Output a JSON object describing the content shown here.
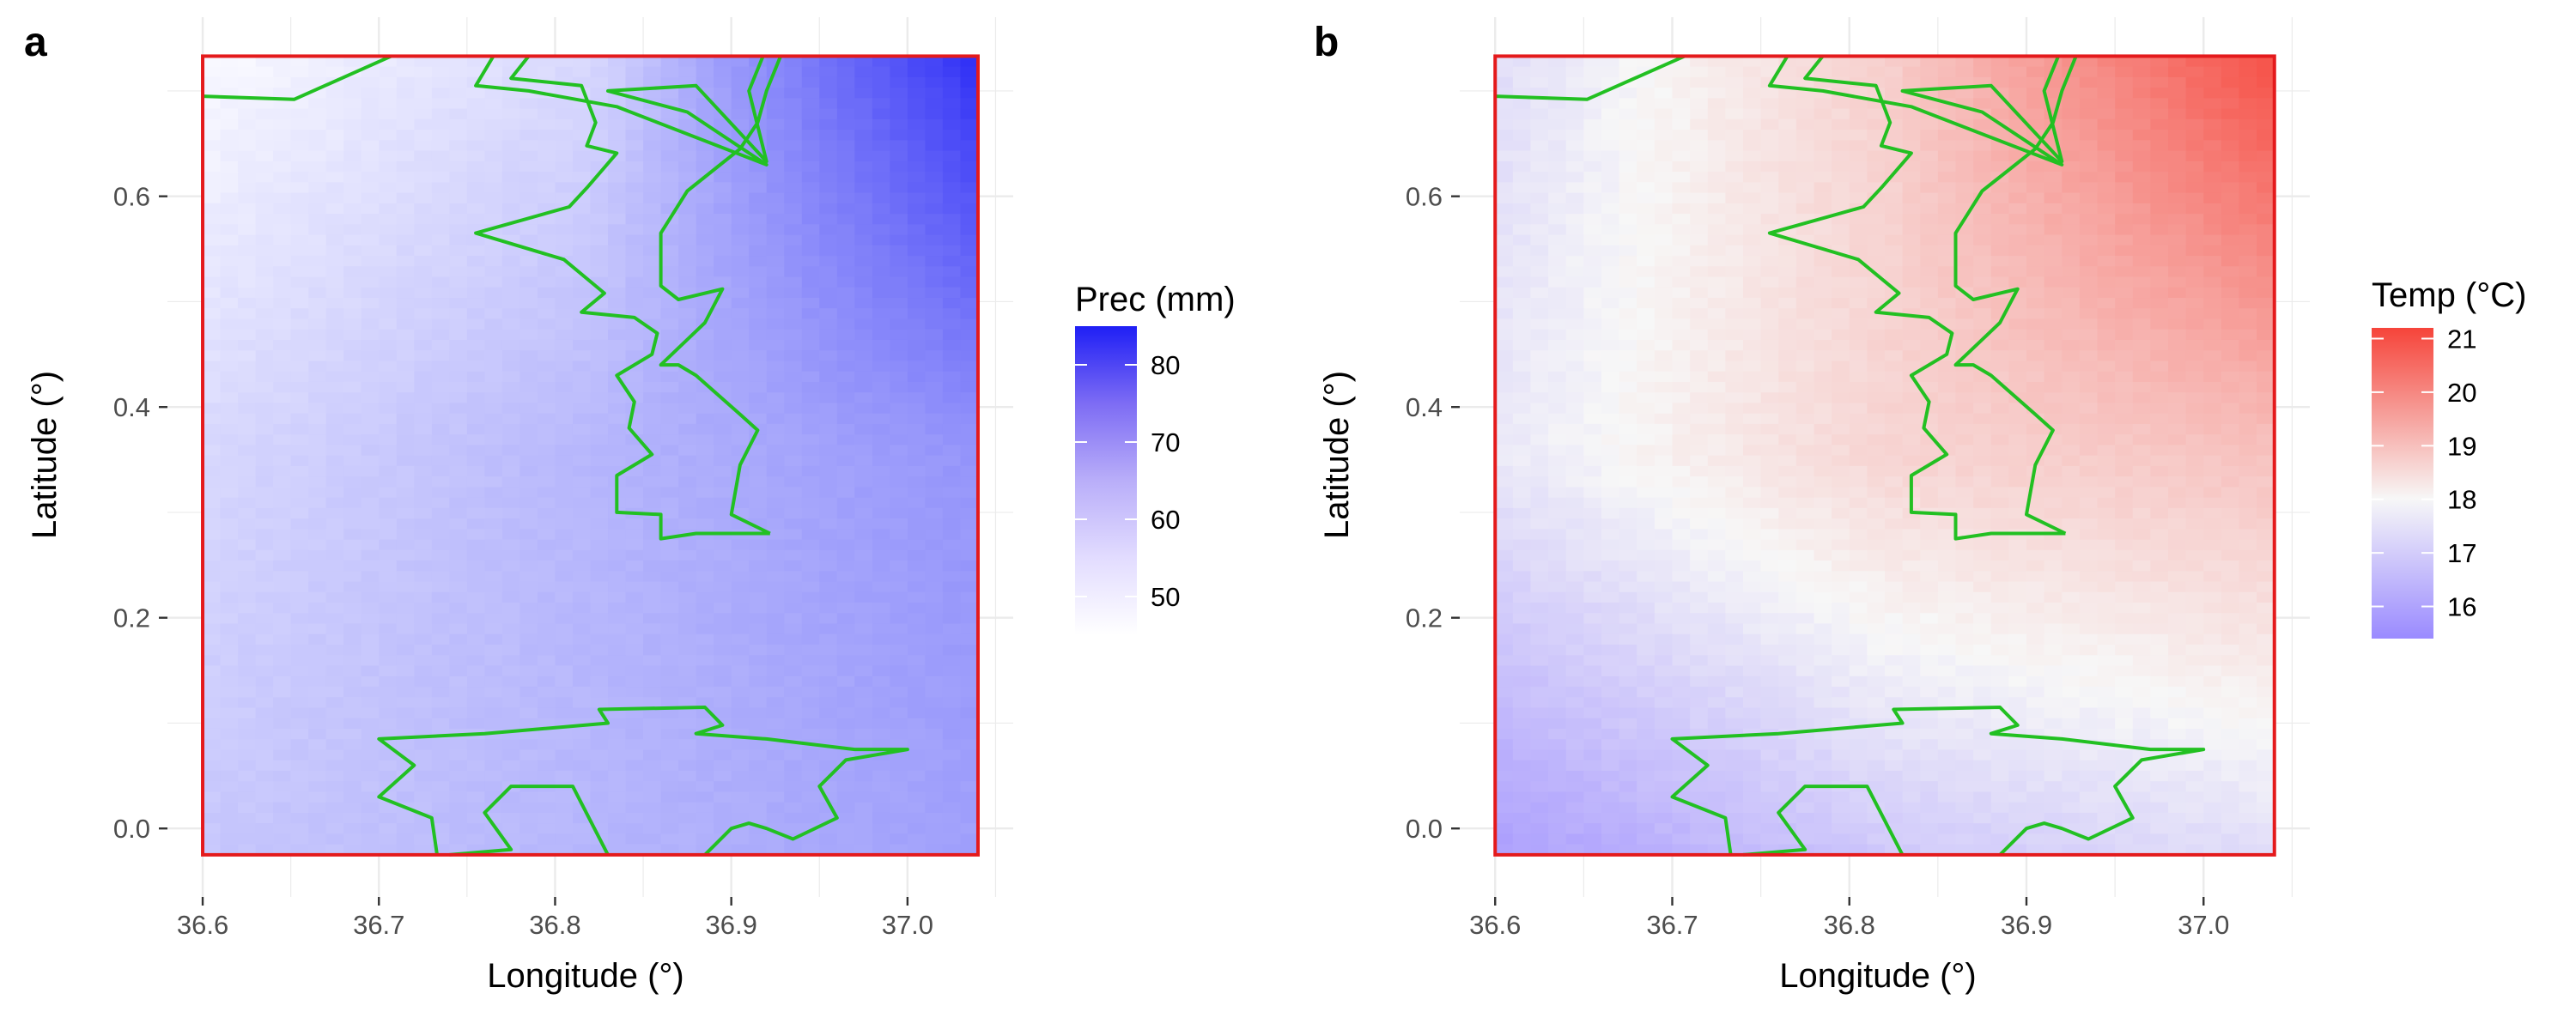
{
  "figure": {
    "colors": {
      "grid": "#ebebeb",
      "extent_border": "#e41a1c",
      "boundary_line": "#22c022",
      "tick": "#333333"
    },
    "boundary": {
      "top_west": [
        [
          36.6,
          0.695
        ],
        [
          36.652,
          0.692
        ],
        [
          36.707,
          0.733
        ]
      ],
      "north_strip": [
        [
          36.765,
          0.733
        ],
        [
          36.755,
          0.705
        ],
        [
          36.785,
          0.7
        ],
        [
          36.835,
          0.685
        ],
        [
          36.92,
          0.63
        ],
        [
          36.875,
          0.68
        ],
        [
          36.83,
          0.7
        ],
        [
          36.88,
          0.705
        ],
        [
          36.92,
          0.633
        ],
        [
          36.91,
          0.7
        ],
        [
          36.918,
          0.733
        ]
      ],
      "central_west": [
        [
          36.785,
          0.733
        ],
        [
          36.775,
          0.712
        ],
        [
          36.815,
          0.705
        ],
        [
          36.823,
          0.67
        ],
        [
          36.818,
          0.648
        ],
        [
          36.835,
          0.641
        ],
        [
          36.818,
          0.608
        ],
        [
          36.808,
          0.59
        ],
        [
          36.755,
          0.565
        ],
        [
          36.805,
          0.54
        ],
        [
          36.828,
          0.508
        ],
        [
          36.815,
          0.49
        ],
        [
          36.845,
          0.485
        ],
        [
          36.858,
          0.47
        ],
        [
          36.855,
          0.45
        ],
        [
          36.835,
          0.43
        ],
        [
          36.845,
          0.405
        ],
        [
          36.842,
          0.38
        ],
        [
          36.855,
          0.355
        ],
        [
          36.835,
          0.335
        ],
        [
          36.835,
          0.3
        ],
        [
          36.86,
          0.298
        ],
        [
          36.86,
          0.275
        ],
        [
          36.88,
          0.28
        ],
        [
          36.905,
          0.28
        ],
        [
          36.922,
          0.28
        ]
      ],
      "central_east": [
        [
          36.922,
          0.28
        ],
        [
          36.9,
          0.298
        ],
        [
          36.905,
          0.345
        ],
        [
          36.915,
          0.378
        ],
        [
          36.905,
          0.393
        ],
        [
          36.88,
          0.43
        ],
        [
          36.87,
          0.44
        ],
        [
          36.86,
          0.44
        ],
        [
          36.885,
          0.48
        ],
        [
          36.895,
          0.512
        ],
        [
          36.87,
          0.502
        ],
        [
          36.86,
          0.515
        ],
        [
          36.86,
          0.53
        ],
        [
          36.86,
          0.565
        ],
        [
          36.875,
          0.605
        ],
        [
          36.89,
          0.625
        ],
        [
          36.905,
          0.645
        ],
        [
          36.915,
          0.67
        ],
        [
          36.92,
          0.7
        ],
        [
          36.928,
          0.733
        ]
      ],
      "south": [
        [
          36.733,
          -0.025
        ],
        [
          36.73,
          0.01
        ],
        [
          36.7,
          0.03
        ],
        [
          36.72,
          0.06
        ],
        [
          36.7,
          0.085
        ],
        [
          36.76,
          0.09
        ],
        [
          36.83,
          0.1
        ],
        [
          36.825,
          0.113
        ],
        [
          36.885,
          0.115
        ],
        [
          36.895,
          0.098
        ],
        [
          36.88,
          0.09
        ],
        [
          36.92,
          0.085
        ],
        [
          36.97,
          0.075
        ],
        [
          37.0,
          0.075
        ],
        [
          36.965,
          0.065
        ],
        [
          36.95,
          0.04
        ],
        [
          36.96,
          0.01
        ],
        [
          36.935,
          -0.01
        ],
        [
          36.92,
          0.0
        ],
        [
          36.91,
          0.005
        ],
        [
          36.9,
          0.0
        ],
        [
          36.885,
          -0.025
        ]
      ],
      "south_inner": [
        [
          36.74,
          -0.025
        ],
        [
          36.775,
          -0.02
        ],
        [
          36.76,
          0.015
        ],
        [
          36.775,
          0.04
        ],
        [
          36.81,
          0.04
        ],
        [
          36.83,
          -0.025
        ]
      ]
    },
    "panels": [
      {
        "letter": "a",
        "xlabel": "Longitude (°)",
        "ylabel": "Latitude (°)",
        "legend": {
          "title": "Prec (mm)",
          "ticks": [
            "80",
            "70",
            "60",
            "50"
          ]
        },
        "colors": {
          "low": "#ffffff",
          "high": "#1f1ff5"
        }
      },
      {
        "letter": "b",
        "xlabel": "Longitude (°)",
        "ylabel": "Latitude (°)",
        "legend": {
          "title": "Temp (°C)",
          "ticks": [
            "21",
            "20",
            "19",
            "18",
            "17",
            "16"
          ]
        },
        "colors": {
          "low": "#9a8aff",
          "mid": "#f7f7f7",
          "high": "#f6443a"
        }
      }
    ]
  },
  "chart_data": [
    {
      "type": "heatmap",
      "title": "",
      "panel_label": "a",
      "xlabel": "Longitude (°)",
      "ylabel": "Latitude (°)",
      "x_ticks": [
        "36.6",
        "36.7",
        "36.8",
        "36.9",
        "37.0"
      ],
      "y_ticks": [
        "0.0",
        "0.2",
        "0.4",
        "0.6"
      ],
      "xlim": [
        36.58,
        37.06
      ],
      "ylim": [
        -0.065,
        0.77
      ],
      "data_extent": {
        "x": [
          36.6,
          37.04
        ],
        "y": [
          -0.025,
          0.733
        ]
      },
      "legend_title": "Prec (mm)",
      "color_range": [
        45,
        85
      ],
      "color_ticks": [
        50,
        60,
        70,
        80
      ],
      "grid": true,
      "legend_position": "right",
      "field_summary": {
        "x": [
          36.6,
          36.82,
          37.04
        ],
        "y": [
          -0.025,
          0.354,
          0.733
        ],
        "z": [
          [
            55,
            58,
            62
          ],
          [
            52,
            58,
            64
          ],
          [
            46,
            52,
            82
          ]
        ]
      }
    },
    {
      "type": "heatmap",
      "title": "",
      "panel_label": "b",
      "xlabel": "Longitude (°)",
      "ylabel": "Latitude (°)",
      "x_ticks": [
        "36.6",
        "36.7",
        "36.8",
        "36.9",
        "37.0"
      ],
      "y_ticks": [
        "0.0",
        "0.2",
        "0.4",
        "0.6"
      ],
      "xlim": [
        36.58,
        37.06
      ],
      "ylim": [
        -0.065,
        0.77
      ],
      "data_extent": {
        "x": [
          36.6,
          37.04
        ],
        "y": [
          -0.025,
          0.733
        ]
      },
      "legend_title": "Temp (°C)",
      "color_range": [
        15.4,
        21.2
      ],
      "color_ticks": [
        16,
        17,
        18,
        19,
        20,
        21
      ],
      "grid": true,
      "legend_position": "right",
      "field_summary": {
        "x": [
          36.6,
          36.82,
          37.04
        ],
        "y": [
          -0.025,
          0.354,
          0.733
        ],
        "z": [
          [
            15.8,
            16.6,
            17.0
          ],
          [
            17.2,
            18.2,
            18.6
          ],
          [
            17.0,
            18.3,
            21.0
          ]
        ]
      }
    }
  ]
}
